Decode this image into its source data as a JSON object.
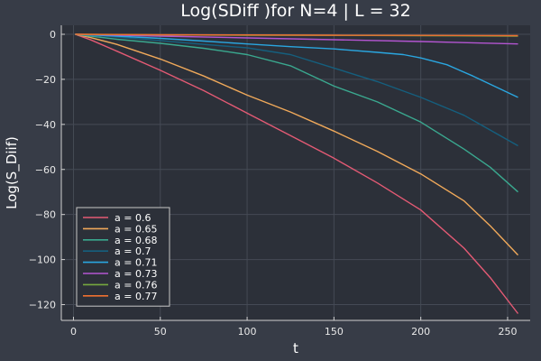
{
  "chart_data": {
    "type": "line",
    "title": "Log(SDiff )for N=4 | L = 32",
    "xlabel": "t",
    "ylabel": "Log(S_Diif)",
    "xlim": [
      -7,
      263
    ],
    "ylim": [
      -127,
      4
    ],
    "x_ticks": [
      0,
      50,
      100,
      150,
      200,
      250
    ],
    "y_ticks": [
      0,
      -20,
      -40,
      -60,
      -80,
      -100,
      -120
    ],
    "grid": true,
    "legend_position": "bottom-left",
    "series": [
      {
        "name": "a = 0.6",
        "color": "#e35a74",
        "x": [
          1,
          10,
          25,
          50,
          75,
          100,
          125,
          150,
          175,
          200,
          225,
          240,
          256
        ],
        "y": [
          0,
          -2.5,
          -7.5,
          -16,
          -25,
          -35,
          -45,
          -55,
          -66,
          -78,
          -95,
          -108,
          -124
        ]
      },
      {
        "name": "a = 0.65",
        "color": "#f0a95a",
        "x": [
          1,
          10,
          25,
          50,
          75,
          100,
          125,
          150,
          175,
          200,
          225,
          240,
          256
        ],
        "y": [
          0,
          -1.5,
          -4.5,
          -11,
          -18.5,
          -27,
          -34.5,
          -43,
          -52,
          -62,
          -74,
          -85,
          -98
        ]
      },
      {
        "name": "a = 0.68",
        "color": "#3aa88f",
        "x": [
          1,
          10,
          25,
          50,
          75,
          100,
          125,
          150,
          175,
          200,
          225,
          240,
          256
        ],
        "y": [
          0,
          -0.8,
          -2.2,
          -4,
          -6.2,
          -9,
          -14,
          -23,
          -30,
          -39,
          -51,
          -59,
          -70
        ]
      },
      {
        "name": "a = 0.7",
        "color": "#155f7e",
        "x": [
          1,
          10,
          25,
          50,
          75,
          100,
          125,
          150,
          175,
          200,
          225,
          240,
          256
        ],
        "y": [
          0,
          -0.4,
          -1.2,
          -2.8,
          -4.5,
          -6,
          -9,
          -15,
          -21,
          -28,
          -36,
          -42.5,
          -49.5
        ]
      },
      {
        "name": "a = 0.71",
        "color": "#2aa6e0",
        "x": [
          1,
          10,
          25,
          50,
          75,
          100,
          125,
          150,
          175,
          190,
          200,
          215,
          230,
          245,
          256
        ],
        "y": [
          0,
          -0.3,
          -0.8,
          -1.8,
          -3,
          -4.3,
          -5.5,
          -6.5,
          -8,
          -9,
          -10.5,
          -13.5,
          -18.5,
          -24,
          -28
        ]
      },
      {
        "name": "a = 0.73",
        "color": "#b355d1",
        "x": [
          1,
          50,
          100,
          150,
          200,
          256
        ],
        "y": [
          0,
          -0.8,
          -1.6,
          -2.4,
          -3.2,
          -4.3
        ]
      },
      {
        "name": "a = 0.76",
        "color": "#76a83f",
        "x": [
          1,
          50,
          100,
          150,
          200,
          256
        ],
        "y": [
          0,
          -0.3,
          -0.4,
          -0.5,
          -0.6,
          -0.8
        ]
      },
      {
        "name": "a = 0.77",
        "color": "#ef7030",
        "x": [
          1,
          50,
          100,
          150,
          200,
          256
        ],
        "y": [
          0,
          -0.2,
          -0.3,
          -0.4,
          -0.5,
          -0.6
        ]
      }
    ]
  }
}
